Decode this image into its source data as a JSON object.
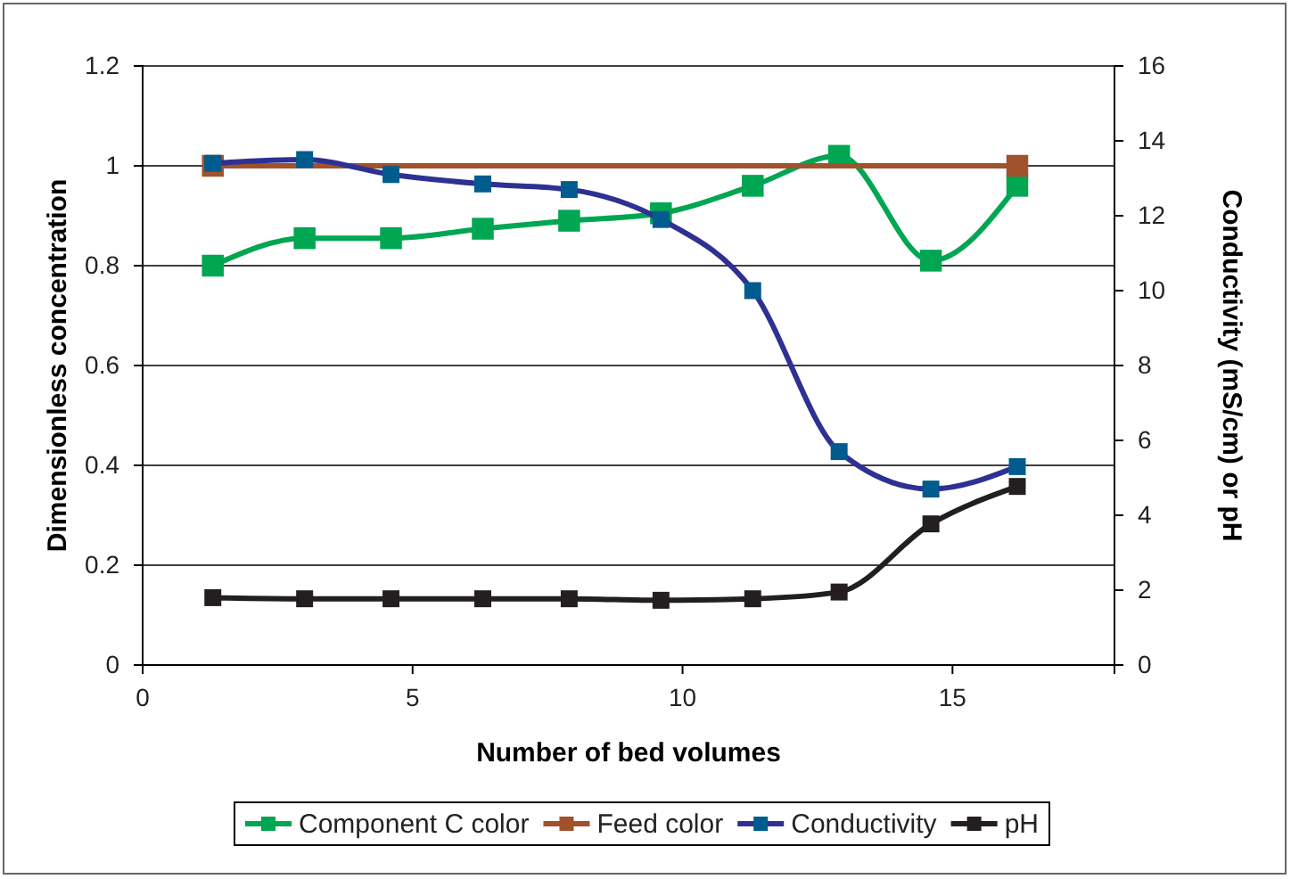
{
  "chart_data": {
    "type": "line",
    "xlabel": "Number of bed volumes",
    "ylabel": "Dimensionless concentration",
    "y2label": "Conductivity (mS/cm) or pH",
    "xlim": [
      0,
      18
    ],
    "xticks": [
      0,
      5,
      10,
      15
    ],
    "ylim": [
      0,
      1.2
    ],
    "yticks": [
      0,
      0.2,
      0.4,
      0.6,
      0.8,
      1,
      1.2
    ],
    "y2lim": [
      0,
      16
    ],
    "y2ticks": [
      0,
      2,
      4,
      6,
      8,
      10,
      12,
      14,
      16
    ],
    "grid": "y",
    "legend": "bottom",
    "marker": "square",
    "series": [
      {
        "name": "Component C color",
        "color": "#00a651",
        "x": [
          1.3,
          3.0,
          4.6,
          6.3,
          7.9,
          9.6,
          11.3,
          12.9,
          14.6,
          16.2
        ],
        "values": [
          0.8,
          0.855,
          0.855,
          0.874,
          0.89,
          0.905,
          0.96,
          1.02,
          0.81,
          0.96
        ]
      },
      {
        "name": "Feed color",
        "color": "#a0522d",
        "x": [
          1.3,
          16.2
        ],
        "values": [
          1,
          1
        ]
      },
      {
        "name": "Conductivity",
        "color": "#2e3192",
        "axis": "y2",
        "x": [
          1.3,
          3.0,
          4.6,
          6.3,
          7.9,
          9.6,
          11.3,
          12.9,
          14.6,
          16.2
        ],
        "values": [
          13.4,
          13.5,
          13.1,
          12.85,
          12.7,
          11.9,
          10,
          5.7,
          4.7,
          5.3
        ]
      },
      {
        "name": "pH",
        "color": "#231f20",
        "axis": "y2",
        "x": [
          1.3,
          3.0,
          4.6,
          6.3,
          7.9,
          9.6,
          11.3,
          12.9,
          14.6,
          16.2
        ],
        "values": [
          1.8,
          1.77,
          1.77,
          1.77,
          1.77,
          1.73,
          1.77,
          1.95,
          3.77,
          4.77
        ]
      }
    ]
  }
}
